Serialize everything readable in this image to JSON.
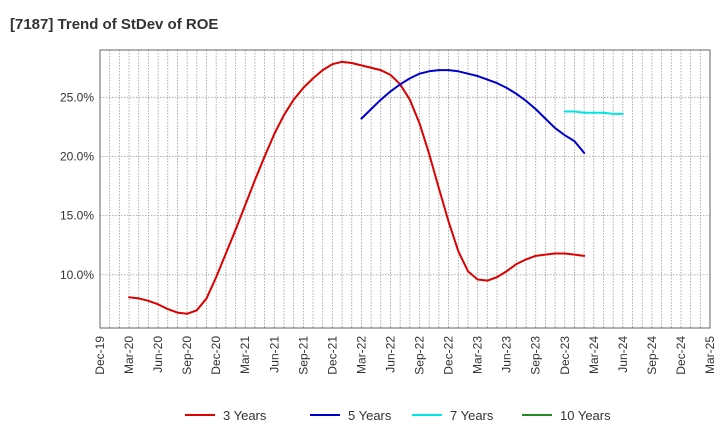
{
  "chart_data": {
    "type": "line",
    "title": "[7187]  Trend of StDev of ROE",
    "xlabel": "",
    "ylabel": "",
    "x_ticks": [
      "Dec-19",
      "Mar-20",
      "Jun-20",
      "Sep-20",
      "Dec-20",
      "Mar-21",
      "Jun-21",
      "Sep-21",
      "Dec-21",
      "Mar-22",
      "Jun-22",
      "Sep-22",
      "Dec-22",
      "Mar-23",
      "Jun-23",
      "Sep-23",
      "Dec-23",
      "Mar-24",
      "Jun-24",
      "Sep-24",
      "Dec-24",
      "Mar-25"
    ],
    "y_ticks": [
      {
        "value": 10,
        "label": "10.0%"
      },
      {
        "value": 15,
        "label": "15.0%"
      },
      {
        "value": 20,
        "label": "20.0%"
      },
      {
        "value": 25,
        "label": "25.0%"
      }
    ],
    "ylim": [
      5.5,
      29
    ],
    "grid": true,
    "legend_position": "bottom",
    "series": [
      {
        "name": "3 Years",
        "color": "#dd0000",
        "points": [
          [
            "Mar-20",
            8.1
          ],
          [
            "Apr-20",
            8.0
          ],
          [
            "May-20",
            7.8
          ],
          [
            "Jun-20",
            7.5
          ],
          [
            "Jul-20",
            7.1
          ],
          [
            "Aug-20",
            6.8
          ],
          [
            "Sep-20",
            6.7
          ],
          [
            "Oct-20",
            7.0
          ],
          [
            "Nov-20",
            8.0
          ],
          [
            "Dec-20",
            9.8
          ],
          [
            "Jan-21",
            11.8
          ],
          [
            "Feb-21",
            13.8
          ],
          [
            "Mar-21",
            15.9
          ],
          [
            "Apr-21",
            18.0
          ],
          [
            "May-21",
            20.0
          ],
          [
            "Jun-21",
            21.9
          ],
          [
            "Jul-21",
            23.5
          ],
          [
            "Aug-21",
            24.8
          ],
          [
            "Sep-21",
            25.8
          ],
          [
            "Oct-21",
            26.6
          ],
          [
            "Nov-21",
            27.3
          ],
          [
            "Dec-21",
            27.8
          ],
          [
            "Jan-22",
            28.0
          ],
          [
            "Feb-22",
            27.9
          ],
          [
            "Mar-22",
            27.7
          ],
          [
            "Apr-22",
            27.5
          ],
          [
            "May-22",
            27.3
          ],
          [
            "Jun-22",
            26.9
          ],
          [
            "Jul-22",
            26.1
          ],
          [
            "Aug-22",
            24.8
          ],
          [
            "Sep-22",
            22.8
          ],
          [
            "Oct-22",
            20.2
          ],
          [
            "Nov-22",
            17.3
          ],
          [
            "Dec-22",
            14.5
          ],
          [
            "Jan-23",
            12.0
          ],
          [
            "Feb-23",
            10.3
          ],
          [
            "Mar-23",
            9.6
          ],
          [
            "Apr-23",
            9.5
          ],
          [
            "May-23",
            9.8
          ],
          [
            "Jun-23",
            10.3
          ],
          [
            "Jul-23",
            10.9
          ],
          [
            "Aug-23",
            11.3
          ],
          [
            "Sep-23",
            11.6
          ],
          [
            "Oct-23",
            11.7
          ],
          [
            "Nov-23",
            11.8
          ],
          [
            "Dec-23",
            11.8
          ],
          [
            "Jan-24",
            11.7
          ],
          [
            "Feb-24",
            11.6
          ]
        ]
      },
      {
        "name": "5 Years",
        "color": "#0000cc",
        "points": [
          [
            "Mar-22",
            23.2
          ],
          [
            "Apr-22",
            24.0
          ],
          [
            "May-22",
            24.8
          ],
          [
            "Jun-22",
            25.5
          ],
          [
            "Jul-22",
            26.1
          ],
          [
            "Aug-22",
            26.6
          ],
          [
            "Sep-22",
            27.0
          ],
          [
            "Oct-22",
            27.2
          ],
          [
            "Nov-22",
            27.3
          ],
          [
            "Dec-22",
            27.3
          ],
          [
            "Jan-23",
            27.2
          ],
          [
            "Feb-23",
            27.0
          ],
          [
            "Mar-23",
            26.8
          ],
          [
            "Apr-23",
            26.5
          ],
          [
            "May-23",
            26.2
          ],
          [
            "Jun-23",
            25.8
          ],
          [
            "Jul-23",
            25.3
          ],
          [
            "Aug-23",
            24.7
          ],
          [
            "Sep-23",
            24.0
          ],
          [
            "Oct-23",
            23.2
          ],
          [
            "Nov-23",
            22.4
          ],
          [
            "Dec-23",
            21.8
          ],
          [
            "Jan-24",
            21.3
          ],
          [
            "Feb-24",
            20.3
          ]
        ]
      },
      {
        "name": "7 Years",
        "color": "#00e5e5",
        "points": [
          [
            "Dec-23",
            23.8
          ],
          [
            "Jan-24",
            23.8
          ],
          [
            "Feb-24",
            23.7
          ],
          [
            "Mar-24",
            23.7
          ],
          [
            "Apr-24",
            23.7
          ],
          [
            "May-24",
            23.6
          ],
          [
            "Jun-24",
            23.6
          ]
        ]
      },
      {
        "name": "10 Years",
        "color": "#228b22",
        "points": []
      }
    ]
  }
}
